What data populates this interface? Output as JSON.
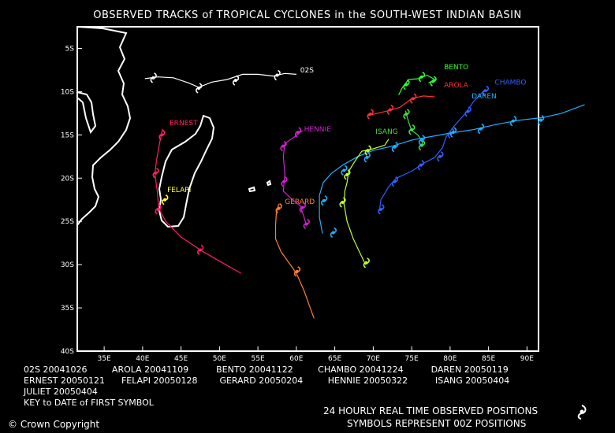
{
  "title": "OBSERVED TRACKS of TROPICAL CYCLONES in the SOUTH-WEST INDIAN BASIN",
  "lat_labels": [
    "5S",
    "10S",
    "15S",
    "20S",
    "25S",
    "30S",
    "35S",
    "40S"
  ],
  "lon_labels": [
    "35E",
    "40E",
    "45E",
    "50E",
    "55E",
    "60E",
    "65E",
    "70E",
    "75E",
    "80E",
    "85E",
    "90E"
  ],
  "storms": [
    {
      "name": "02S",
      "color": "#ffffff",
      "track": [
        [
          40.3,
          8.5
        ],
        [
          42,
          8.3
        ],
        [
          44,
          8.4
        ],
        [
          46,
          9.0
        ],
        [
          47.3,
          9.5
        ],
        [
          49,
          8.9
        ],
        [
          51,
          8.6
        ],
        [
          53,
          8.0
        ],
        [
          55,
          8.0
        ],
        [
          57,
          8.2
        ],
        [
          58.5,
          7.9
        ],
        [
          60,
          8.0
        ]
      ],
      "symbols": [
        [
          41.4,
          8.4
        ],
        [
          47.3,
          9.6
        ],
        [
          52.1,
          8.7
        ],
        [
          57.5,
          8.1
        ]
      ]
    },
    {
      "name": "ERNEST",
      "color": "#ff2060",
      "track": [
        [
          42.6,
          14.3
        ],
        [
          42.2,
          16
        ],
        [
          41.8,
          18
        ],
        [
          41.6,
          19.5
        ],
        [
          41.9,
          21.5
        ],
        [
          42.1,
          23.5
        ],
        [
          43,
          25
        ],
        [
          45,
          26.8
        ],
        [
          47.5,
          28.3
        ],
        [
          50,
          29.6
        ],
        [
          52.8,
          31.0
        ]
      ],
      "symbols": [
        [
          42.5,
          15.0
        ],
        [
          41.7,
          19.4
        ],
        [
          42.0,
          23.6
        ],
        [
          47.5,
          28.3
        ]
      ]
    },
    {
      "name": "FELAPI",
      "color": "#ffff40",
      "track": [
        [
          42.5,
          22.6
        ],
        [
          43.3,
          22.4
        ]
      ],
      "symbols": [
        [
          42.9,
          22.5
        ]
      ]
    },
    {
      "name": "AROLA",
      "color": "#ff3030",
      "track": [
        [
          69.2,
          12.8
        ],
        [
          70.5,
          12.5
        ],
        [
          72,
          12.2
        ],
        [
          73.5,
          11.8
        ],
        [
          75,
          10.8
        ],
        [
          76.5,
          10.5
        ],
        [
          78,
          10.6
        ]
      ],
      "symbols": [
        [
          69.6,
          12.6
        ],
        [
          72.2,
          12.1
        ],
        [
          75.2,
          10.8
        ]
      ]
    },
    {
      "name": "BENTO",
      "color": "#30ff30",
      "track": [
        [
          73.3,
          10.4
        ],
        [
          73.8,
          9.5
        ],
        [
          74.6,
          8.6
        ],
        [
          76,
          8.5
        ],
        [
          77,
          8.1
        ],
        [
          78,
          8.6
        ],
        [
          77.2,
          9.0
        ]
      ],
      "symbols": [
        [
          74.3,
          9.2
        ],
        [
          76.3,
          8.3
        ],
        [
          77.8,
          8.8
        ]
      ]
    },
    {
      "name": "ISANG",
      "color": "#40e040",
      "track": [
        [
          74.2,
          12.2
        ],
        [
          74.6,
          13.5
        ],
        [
          75.0,
          14.5
        ],
        [
          75.8,
          15.0
        ],
        [
          76.4,
          15.8
        ],
        [
          76.3,
          16.4
        ]
      ],
      "symbols": [
        [
          74.3,
          12.6
        ],
        [
          75.0,
          14.4
        ],
        [
          76.3,
          16.2
        ]
      ]
    },
    {
      "name": "CHAMBO",
      "color": "#3060ff",
      "track": [
        [
          70.8,
          23.8
        ],
        [
          71,
          22.5
        ],
        [
          72,
          21
        ],
        [
          73,
          20
        ],
        [
          75,
          19.2
        ],
        [
          76.5,
          18.3
        ],
        [
          78,
          17.6
        ],
        [
          79,
          16.5
        ],
        [
          79.5,
          15.2
        ],
        [
          80.5,
          14
        ],
        [
          82,
          12.5
        ],
        [
          83,
          11.2
        ],
        [
          84.5,
          9.8
        ]
      ],
      "symbols": [
        [
          71.0,
          23.6
        ],
        [
          72.8,
          20.4
        ],
        [
          76.2,
          18.5
        ],
        [
          78.7,
          17.5
        ],
        [
          80.1,
          14.8
        ],
        [
          82.3,
          12.3
        ],
        [
          84.6,
          9.9
        ]
      ]
    },
    {
      "name": "DAREN",
      "color": "#20b0ff",
      "track": [
        [
          63.4,
          26.4
        ],
        [
          63,
          24.5
        ],
        [
          63,
          22
        ],
        [
          63.5,
          20.5
        ],
        [
          64.5,
          19.5
        ],
        [
          66,
          18.5
        ],
        [
          68,
          17.5
        ],
        [
          70,
          16.8
        ],
        [
          72.5,
          16.3
        ],
        [
          75,
          15.6
        ],
        [
          77.5,
          15.2
        ],
        [
          80,
          14.8
        ],
        [
          83,
          14.4
        ],
        [
          86,
          13.8
        ],
        [
          89,
          13.3
        ],
        [
          92,
          13.0
        ],
        [
          94.5,
          12.5
        ],
        [
          97.5,
          11.5
        ]
      ],
      "symbols": [
        [
          64.8,
          26.3
        ],
        [
          63.6,
          22.6
        ],
        [
          66.2,
          19.1
        ],
        [
          69.2,
          17.6
        ],
        [
          72.8,
          16.4
        ],
        [
          76.3,
          15.6
        ],
        [
          80.4,
          14.7
        ],
        [
          84,
          14.3
        ],
        [
          88.2,
          13.4
        ],
        [
          91.8,
          13.3
        ]
      ]
    },
    {
      "name": "HENNIE",
      "color": "#d020d0",
      "track": [
        [
          60.8,
          14.5
        ],
        [
          59.8,
          15.2
        ],
        [
          58.5,
          16
        ],
        [
          58.3,
          17.5
        ],
        [
          58.5,
          19.5
        ],
        [
          58.3,
          21.5
        ],
        [
          59.5,
          22.5
        ],
        [
          60.5,
          23.2
        ],
        [
          61,
          24.5
        ],
        [
          61.3,
          25.5
        ]
      ],
      "symbols": [
        [
          60.2,
          14.7
        ],
        [
          58.3,
          16.3
        ],
        [
          58.4,
          20.4
        ],
        [
          60.8,
          23.4
        ],
        [
          61.3,
          25.3
        ]
      ]
    },
    {
      "name": "GERARD",
      "color": "#ff8030",
      "track": [
        [
          57.7,
          23.0
        ],
        [
          57.4,
          24
        ],
        [
          57.3,
          25.5
        ],
        [
          57.3,
          27
        ],
        [
          58,
          28.5
        ],
        [
          59.2,
          30
        ],
        [
          60,
          31
        ],
        [
          61,
          33
        ],
        [
          61.8,
          35
        ],
        [
          62.3,
          36.2
        ]
      ],
      "symbols": [
        [
          57.7,
          23.5
        ],
        [
          60.1,
          30.8
        ]
      ]
    },
    {
      "name": "JULIET",
      "color": "#c0ff30",
      "track": [
        [
          72,
          15.5
        ],
        [
          71.5,
          16.2
        ],
        [
          70,
          16.6
        ],
        [
          68.5,
          16.9
        ],
        [
          67.8,
          17.8
        ],
        [
          66.8,
          19.2
        ],
        [
          66.6,
          20.5
        ],
        [
          66.3,
          21.5
        ],
        [
          66.2,
          23.0
        ],
        [
          66.6,
          25
        ],
        [
          67.4,
          27.0
        ],
        [
          68.2,
          28.5
        ],
        [
          69,
          30.0
        ]
      ],
      "symbols": [
        [
          69.3,
          16.8
        ],
        [
          66.6,
          19.6
        ],
        [
          66.0,
          22.8
        ],
        [
          69.1,
          29.8
        ]
      ]
    }
  ],
  "labels": [
    {
      "text": "02S",
      "color": "#ffffff",
      "lon": 60.5,
      "lat": 7.8
    },
    {
      "text": "ERNEST",
      "color": "#ff2060",
      "lon": 43.5,
      "lat": 13.9
    },
    {
      "text": "FELAPI",
      "color": "#ffff40",
      "lon": 43.2,
      "lat": 21.6
    },
    {
      "text": "HENNIE",
      "color": "#d020d0",
      "lon": 61.0,
      "lat": 14.6
    },
    {
      "text": "GERARD",
      "color": "#ff8030",
      "lon": 58.5,
      "lat": 23.0
    },
    {
      "text": "BENTO",
      "color": "#30ff30",
      "lon": 79.2,
      "lat": 7.4
    },
    {
      "text": "AROLA",
      "color": "#ff3030",
      "lon": 79.2,
      "lat": 9.5
    },
    {
      "text": "CHAMBO",
      "color": "#3060ff",
      "lon": 85.8,
      "lat": 9.2
    },
    {
      "text": "DAREN",
      "color": "#20b0ff",
      "lon": 82.8,
      "lat": 10.8
    },
    {
      "text": "ISANG",
      "color": "#40e040",
      "lon": 70.3,
      "lat": 14.9
    }
  ],
  "legend_rows": [
    "02S 20041026         AROLA 20041109          BENTO 20041122         CHAMBO 20041224          DAREN 20050119",
    "ERNEST 20050121      FELAPI 20050128        GERARD 20050204         HENNIE 20050322          ISANG 20050404",
    "JULIET 20050404",
    "KEY to DATE of FIRST SYMBOL"
  ],
  "footer_right_1": "24 HOURLY REAL TIME OBSERVED POSITIONS",
  "footer_right_2": "SYMBOLS REPRESENT 00Z POSITIONS",
  "copyright": "Crown Copyright"
}
